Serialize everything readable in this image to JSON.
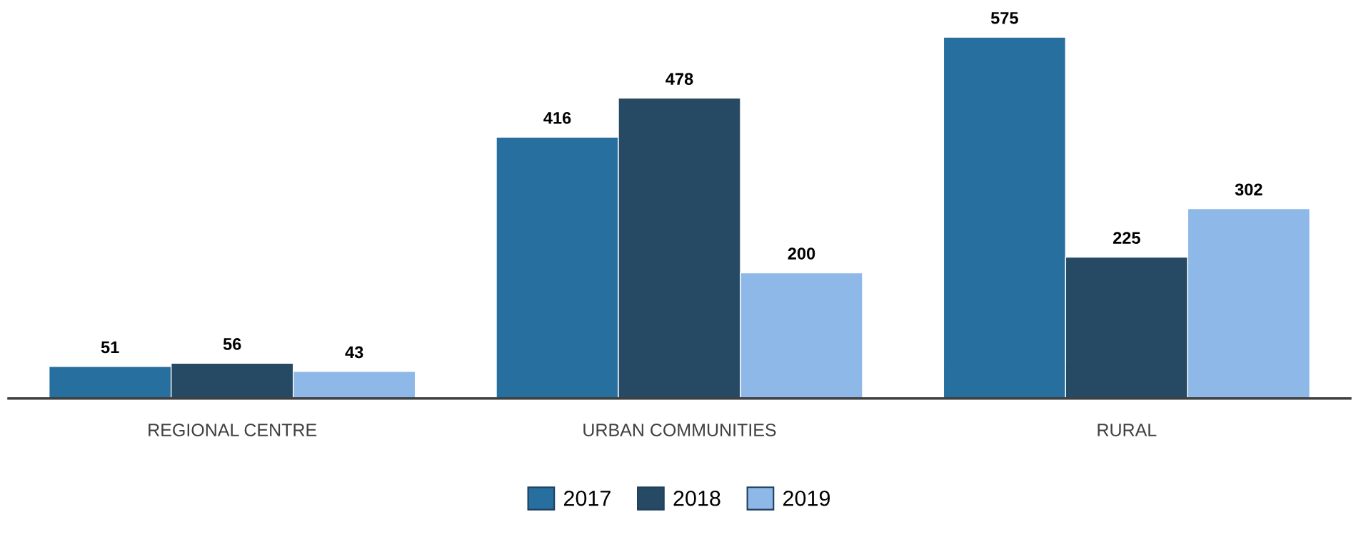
{
  "chart_data": {
    "type": "bar",
    "categories": [
      "REGIONAL CENTRE",
      "URBAN COMMUNITIES",
      "RURAL"
    ],
    "series": [
      {
        "name": "2017",
        "color": "#276f9e",
        "values": [
          51,
          416,
          575
        ]
      },
      {
        "name": "2018",
        "color": "#264a64",
        "values": [
          56,
          478,
          225
        ]
      },
      {
        "name": "2019",
        "color": "#8db8e8",
        "values": [
          43,
          200,
          302
        ]
      }
    ],
    "data_labels": true,
    "legend": "bottom",
    "grid": false
  }
}
